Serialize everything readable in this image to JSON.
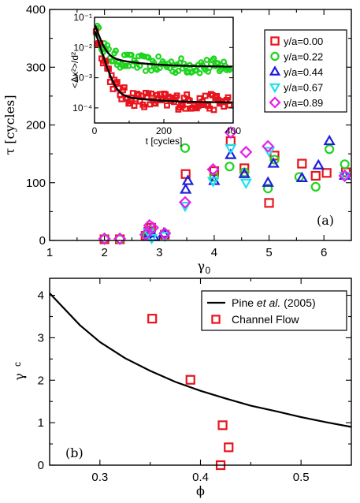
{
  "chart_data": [
    {
      "type": "scatter",
      "panel_label": "(a)",
      "ylabel": "τ [cycles]",
      "xlabel": "γ",
      "xlabel_sub": "0",
      "xlim": [
        1,
        6.5
      ],
      "ylim": [
        0,
        400
      ],
      "xticks": [
        "1",
        "2",
        "3",
        "4",
        "5",
        "6"
      ],
      "yticks": [
        "0",
        "100",
        "200",
        "300",
        "400"
      ],
      "legend_position": "top-right",
      "series": [
        {
          "name": "y/a=0.00",
          "color": "#e8141d",
          "marker": "square",
          "points": [
            [
              2.0,
              2
            ],
            [
              2.28,
              2
            ],
            [
              2.75,
              8
            ],
            [
              2.8,
              15
            ],
            [
              2.85,
              22
            ],
            [
              3.1,
              10
            ],
            [
              3.48,
              115
            ],
            [
              4.0,
              120
            ],
            [
              4.3,
              172
            ],
            [
              4.55,
              125
            ],
            [
              5.0,
              65
            ],
            [
              5.1,
              147
            ],
            [
              5.6,
              133
            ],
            [
              5.85,
              112
            ],
            [
              6.05,
              117
            ],
            [
              6.4,
              118
            ]
          ]
        },
        {
          "name": "y/a=0.22",
          "color": "#1ed41e",
          "marker": "circle",
          "points": [
            [
              2.0,
              3
            ],
            [
              2.28,
              2
            ],
            [
              2.78,
              9
            ],
            [
              2.83,
              18
            ],
            [
              3.1,
              12
            ],
            [
              3.47,
              160
            ],
            [
              4.0,
              110
            ],
            [
              4.28,
              128
            ],
            [
              4.55,
              118
            ],
            [
              4.98,
              90
            ],
            [
              5.1,
              140
            ],
            [
              5.55,
              110
            ],
            [
              5.85,
              93
            ],
            [
              6.1,
              158
            ],
            [
              6.38,
              132
            ]
          ]
        },
        {
          "name": "y/a=0.44",
          "color": "#1e1edc",
          "marker": "triangle-up",
          "points": [
            [
              2.82,
              12
            ],
            [
              2.9,
              6
            ],
            [
              3.08,
              12
            ],
            [
              3.48,
              88
            ],
            [
              3.52,
              103
            ],
            [
              4.0,
              103
            ],
            [
              4.3,
              148
            ],
            [
              4.55,
              115
            ],
            [
              4.98,
              100
            ],
            [
              5.08,
              133
            ],
            [
              5.6,
              108
            ],
            [
              5.9,
              130
            ],
            [
              6.1,
              172
            ],
            [
              6.38,
              112
            ]
          ]
        },
        {
          "name": "y/a=0.67",
          "color": "#1ee0f0",
          "marker": "triangle-down",
          "points": [
            [
              2.8,
              14
            ],
            [
              2.86,
              4
            ],
            [
              3.1,
              8
            ],
            [
              3.47,
              60
            ],
            [
              3.98,
              103
            ],
            [
              4.3,
              160
            ],
            [
              4.58,
              100
            ],
            [
              5.0,
              155
            ],
            [
              6.38,
              112
            ]
          ]
        },
        {
          "name": "y/a=0.89",
          "color": "#e81ee8",
          "marker": "diamond",
          "points": [
            [
              2.0,
              3
            ],
            [
              2.28,
              3
            ],
            [
              2.75,
              10
            ],
            [
              2.82,
              26
            ],
            [
              2.88,
              22
            ],
            [
              3.1,
              12
            ],
            [
              3.47,
              66
            ],
            [
              3.98,
              123
            ],
            [
              4.3,
              187
            ],
            [
              4.58,
              153
            ],
            [
              4.98,
              163
            ],
            [
              6.38,
              112
            ]
          ]
        }
      ],
      "inset": {
        "xlabel": "t [cycles]",
        "ylabel": "<Δx²>/d²",
        "xlim": [
          0,
          400
        ],
        "ylim_log10": [
          -4.5,
          -1
        ],
        "xticks": [
          "0",
          "200",
          "400"
        ],
        "yticks": [
          "10⁻¹",
          "10⁻²",
          "10⁻³",
          "10⁻⁴"
        ],
        "series": [
          {
            "name": "y/a=0.22",
            "color": "#1ed41e",
            "marker": "circle",
            "plateau": 0.0023,
            "start": 0.06,
            "noise": 0.3
          },
          {
            "name": "y/a=0.00",
            "color": "#e8141d",
            "marker": "square",
            "plateau": 0.00015,
            "start": 0.04,
            "noise": 0.3
          }
        ],
        "fits": [
          {
            "color": "#000000",
            "plateau": 0.0023,
            "start": 0.06
          },
          {
            "color": "#000000",
            "plateau": 0.00015,
            "start": 0.04
          }
        ]
      }
    },
    {
      "type": "scatter",
      "panel_label": "(b)",
      "ylabel": "γ",
      "ylabel_sup": "c",
      "xlabel": "ϕ",
      "xlim": [
        0.25,
        0.55
      ],
      "ylim": [
        0,
        4.4
      ],
      "xticks": [
        "0.3",
        "0.4",
        "0.5"
      ],
      "yticks": [
        "0",
        "1",
        "2",
        "3",
        "4"
      ],
      "legend_position": "top-right",
      "series": [
        {
          "name": "Channel Flow",
          "color": "#e8141d",
          "marker": "square",
          "points": [
            [
              0.352,
              3.45
            ],
            [
              0.39,
              2.01
            ],
            [
              0.422,
              0.94
            ],
            [
              0.428,
              0.42
            ],
            [
              0.42,
              0.0
            ]
          ]
        }
      ],
      "curve": {
        "name_prefix": "Pine ",
        "name_italic": "et al.",
        "name_suffix": " (2005)",
        "color": "#000000",
        "points": [
          [
            0.25,
            4.05
          ],
          [
            0.28,
            3.3
          ],
          [
            0.3,
            2.9
          ],
          [
            0.325,
            2.52
          ],
          [
            0.35,
            2.22
          ],
          [
            0.375,
            1.96
          ],
          [
            0.4,
            1.75
          ],
          [
            0.425,
            1.57
          ],
          [
            0.45,
            1.4
          ],
          [
            0.475,
            1.27
          ],
          [
            0.5,
            1.13
          ],
          [
            0.525,
            1.01
          ],
          [
            0.55,
            0.9
          ]
        ]
      }
    }
  ]
}
